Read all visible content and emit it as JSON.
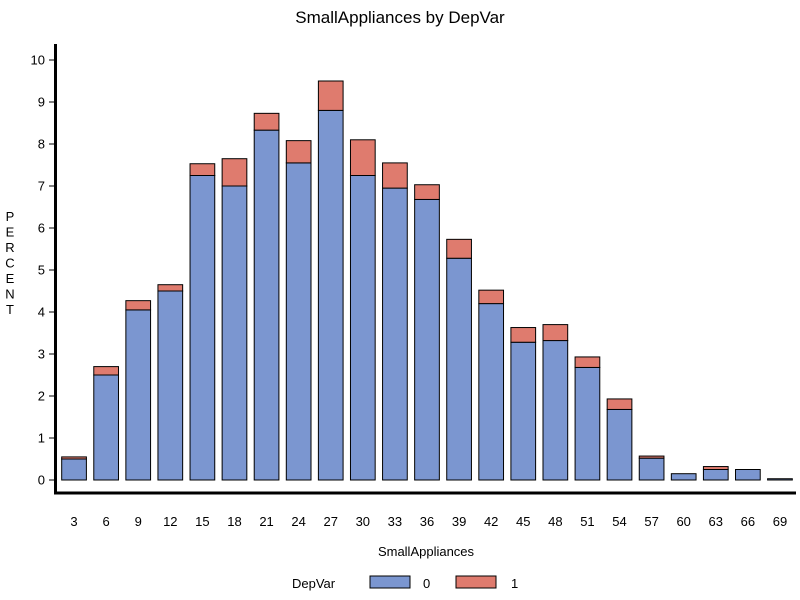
{
  "chart_data": {
    "type": "bar",
    "stacked": true,
    "title": "SmallAppliances by DepVar",
    "xlabel": "SmallAppliances",
    "ylabel": "PERCENT",
    "ylim": [
      0,
      10
    ],
    "yticks": [
      0,
      1,
      2,
      3,
      4,
      5,
      6,
      7,
      8,
      9,
      10
    ],
    "grid": false,
    "legend_title": "DepVar",
    "legend_position": "bottom",
    "categories": [
      "3",
      "6",
      "9",
      "12",
      "15",
      "18",
      "21",
      "24",
      "27",
      "30",
      "33",
      "36",
      "39",
      "42",
      "45",
      "48",
      "51",
      "54",
      "57",
      "60",
      "63",
      "66",
      "69"
    ],
    "series": [
      {
        "name": "0",
        "color": "#7b96d0",
        "values": [
          0.5,
          2.5,
          4.05,
          4.5,
          7.25,
          7.0,
          8.33,
          7.55,
          8.8,
          7.25,
          6.95,
          6.68,
          5.28,
          4.2,
          3.28,
          3.32,
          2.68,
          1.68,
          0.52,
          0.15,
          0.25,
          0.25,
          0.03
        ]
      },
      {
        "name": "1",
        "color": "#df7b6e",
        "values": [
          0.05,
          0.2,
          0.22,
          0.15,
          0.28,
          0.65,
          0.4,
          0.53,
          0.7,
          0.85,
          0.6,
          0.35,
          0.45,
          0.32,
          0.35,
          0.38,
          0.25,
          0.25,
          0.05,
          0.0,
          0.07,
          0.0,
          0.0
        ]
      }
    ]
  }
}
